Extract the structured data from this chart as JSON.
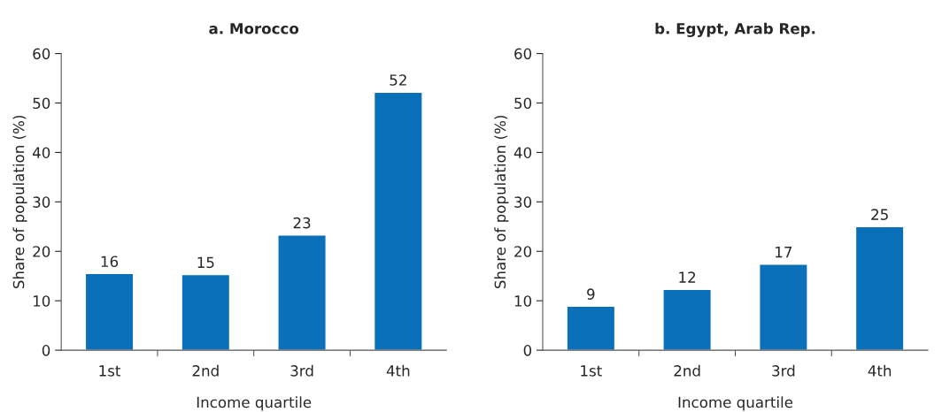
{
  "chart_data": [
    {
      "type": "bar",
      "title": "a. Morocco",
      "xlabel": "Income quartile",
      "ylabel": "Share of population (%)",
      "categories": [
        "1st",
        "2nd",
        "3rd",
        "4th"
      ],
      "values": [
        15.5,
        15.3,
        23.3,
        52.2
      ],
      "value_labels": [
        "16",
        "15",
        "23",
        "52"
      ],
      "color": "#0a70ba",
      "ylim": [
        0,
        60
      ],
      "yticks": [
        0,
        10,
        20,
        30,
        40,
        50,
        60
      ],
      "grid": false,
      "legend": false
    },
    {
      "type": "bar",
      "title": "b. Egypt, Arab Rep.",
      "xlabel": "Income quartile",
      "ylabel": "Share of population (%)",
      "categories": [
        "1st",
        "2nd",
        "3rd",
        "4th"
      ],
      "values": [
        8.9,
        12.3,
        17.4,
        25.0
      ],
      "value_labels": [
        "9",
        "12",
        "17",
        "25"
      ],
      "color": "#0a70ba",
      "ylim": [
        0,
        60
      ],
      "yticks": [
        0,
        10,
        20,
        30,
        40,
        50,
        60
      ],
      "grid": false,
      "legend": false
    }
  ]
}
